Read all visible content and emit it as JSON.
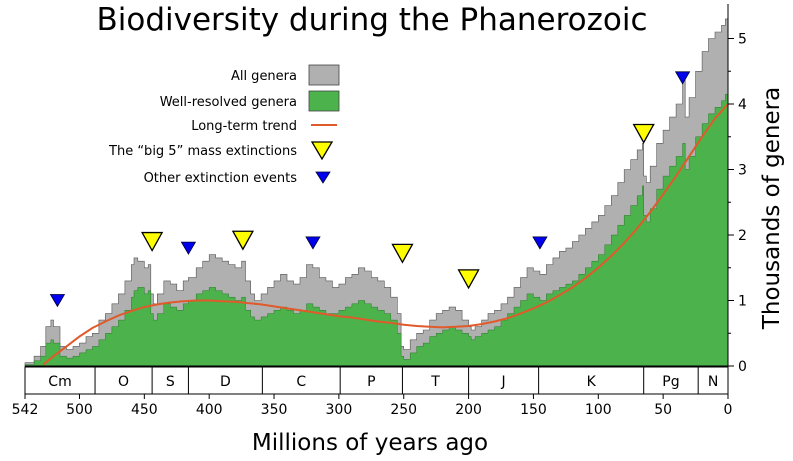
{
  "chart_data": {
    "type": "area",
    "title": "Biodiversity during the Phanerozoic",
    "xlabel": "Millions of years ago",
    "ylabel": "Thousands of genera",
    "xlim": [
      542,
      0
    ],
    "ylim": [
      0,
      5.5
    ],
    "x_ticks": [
      542,
      500,
      450,
      400,
      350,
      300,
      250,
      200,
      150,
      100,
      50,
      0
    ],
    "y_ticks": [
      0,
      1,
      2,
      3,
      4,
      5
    ],
    "legend_position": "top-left",
    "colors": {
      "all_genera": "#b0b0b0",
      "well_resolved": "#4cb24c",
      "trend": "#e05a2b",
      "big5": "#ffff00",
      "other_events": "#0000ee"
    },
    "legend": [
      {
        "label": "All genera",
        "key": "all_genera"
      },
      {
        "label": "Well-resolved genera",
        "key": "well_resolved"
      },
      {
        "label": "Long-term trend",
        "key": "trend"
      },
      {
        "label": "The “big 5” mass extinctions",
        "key": "big5"
      },
      {
        "label": "Other extinction events",
        "key": "other_events"
      }
    ],
    "periods": [
      {
        "label": "Cm",
        "start": 542,
        "end": 488
      },
      {
        "label": "O",
        "start": 488,
        "end": 444
      },
      {
        "label": "S",
        "start": 444,
        "end": 416
      },
      {
        "label": "D",
        "start": 416,
        "end": 359
      },
      {
        "label": "C",
        "start": 359,
        "end": 299
      },
      {
        "label": "P",
        "start": 299,
        "end": 251
      },
      {
        "label": "T",
        "start": 251,
        "end": 200
      },
      {
        "label": "J",
        "start": 200,
        "end": 146
      },
      {
        "label": "K",
        "start": 146,
        "end": 65
      },
      {
        "label": "Pg",
        "start": 65,
        "end": 23
      },
      {
        "label": "N",
        "start": 23,
        "end": 0
      }
    ],
    "series": [
      {
        "name": "All genera",
        "x": [
          542,
          535,
          530,
          526,
          522,
          520,
          515,
          510,
          505,
          500,
          495,
          490,
          485,
          480,
          475,
          470,
          465,
          460,
          458,
          455,
          450,
          447,
          445,
          443,
          440,
          435,
          430,
          425,
          420,
          416,
          410,
          405,
          400,
          395,
          390,
          385,
          380,
          375,
          372,
          368,
          365,
          360,
          355,
          350,
          345,
          340,
          335,
          330,
          325,
          320,
          315,
          310,
          305,
          300,
          295,
          290,
          285,
          280,
          275,
          270,
          265,
          260,
          255,
          252,
          250,
          245,
          240,
          235,
          230,
          225,
          220,
          215,
          210,
          205,
          200,
          198,
          195,
          190,
          185,
          180,
          175,
          170,
          165,
          160,
          155,
          150,
          145,
          140,
          135,
          130,
          125,
          120,
          115,
          110,
          105,
          100,
          95,
          90,
          85,
          80,
          75,
          70,
          66,
          65,
          63,
          60,
          55,
          50,
          45,
          40,
          35,
          33,
          30,
          25,
          20,
          15,
          10,
          5,
          2,
          0
        ],
        "values": [
          0.05,
          0.15,
          0.3,
          0.6,
          0.7,
          0.6,
          0.3,
          0.25,
          0.3,
          0.35,
          0.45,
          0.5,
          0.7,
          0.8,
          0.95,
          1.1,
          1.3,
          1.55,
          1.65,
          1.6,
          1.5,
          1.55,
          1.1,
          0.95,
          1.1,
          1.3,
          1.25,
          1.15,
          1.3,
          1.35,
          1.5,
          1.6,
          1.7,
          1.65,
          1.6,
          1.55,
          1.5,
          1.6,
          1.3,
          1.1,
          1.0,
          1.1,
          1.2,
          1.3,
          1.4,
          1.3,
          1.25,
          1.35,
          1.55,
          1.5,
          1.35,
          1.3,
          1.2,
          1.25,
          1.35,
          1.4,
          1.5,
          1.45,
          1.35,
          1.3,
          1.2,
          1.05,
          0.8,
          0.3,
          0.25,
          0.4,
          0.5,
          0.55,
          0.7,
          0.8,
          0.85,
          0.9,
          0.85,
          0.7,
          0.6,
          0.55,
          0.6,
          0.7,
          0.8,
          0.85,
          0.95,
          1.05,
          1.2,
          1.35,
          1.5,
          1.45,
          1.4,
          1.55,
          1.65,
          1.75,
          1.8,
          1.9,
          2.0,
          2.1,
          2.2,
          2.3,
          2.45,
          2.6,
          2.8,
          3.0,
          3.15,
          3.3,
          3.4,
          2.9,
          2.8,
          3.05,
          3.4,
          3.6,
          3.8,
          4.0,
          4.4,
          3.8,
          4.1,
          4.5,
          4.8,
          5.0,
          5.1,
          5.2,
          5.3,
          5.3
        ]
      },
      {
        "name": "Well-resolved genera",
        "x": [
          542,
          535,
          530,
          526,
          522,
          520,
          515,
          510,
          505,
          500,
          495,
          490,
          485,
          480,
          475,
          470,
          465,
          460,
          458,
          455,
          450,
          447,
          445,
          443,
          440,
          435,
          430,
          425,
          420,
          416,
          410,
          405,
          400,
          395,
          390,
          385,
          380,
          375,
          372,
          368,
          365,
          360,
          355,
          350,
          345,
          340,
          335,
          330,
          325,
          320,
          315,
          310,
          305,
          300,
          295,
          290,
          285,
          280,
          275,
          270,
          265,
          260,
          255,
          252,
          250,
          245,
          240,
          235,
          230,
          225,
          220,
          215,
          210,
          205,
          200,
          198,
          195,
          190,
          185,
          180,
          175,
          170,
          165,
          160,
          155,
          150,
          145,
          140,
          135,
          130,
          125,
          120,
          115,
          110,
          105,
          100,
          95,
          90,
          85,
          80,
          75,
          70,
          66,
          65,
          63,
          60,
          55,
          50,
          45,
          40,
          35,
          33,
          30,
          25,
          20,
          15,
          10,
          5,
          2,
          0
        ],
        "values": [
          0.02,
          0.08,
          0.15,
          0.35,
          0.4,
          0.35,
          0.15,
          0.12,
          0.15,
          0.2,
          0.25,
          0.3,
          0.4,
          0.5,
          0.6,
          0.7,
          0.85,
          1.05,
          1.15,
          1.2,
          1.1,
          1.15,
          0.8,
          0.7,
          0.8,
          0.95,
          0.9,
          0.85,
          0.95,
          1.0,
          1.1,
          1.15,
          1.2,
          1.15,
          1.1,
          1.05,
          1.0,
          1.05,
          0.85,
          0.75,
          0.7,
          0.75,
          0.8,
          0.85,
          0.9,
          0.85,
          0.8,
          0.85,
          0.95,
          0.9,
          0.85,
          0.8,
          0.8,
          0.85,
          0.9,
          0.95,
          1.0,
          0.95,
          0.9,
          0.85,
          0.8,
          0.7,
          0.5,
          0.15,
          0.1,
          0.2,
          0.3,
          0.35,
          0.45,
          0.5,
          0.55,
          0.6,
          0.55,
          0.5,
          0.45,
          0.4,
          0.45,
          0.5,
          0.55,
          0.6,
          0.7,
          0.8,
          0.9,
          1.0,
          1.1,
          1.05,
          1.0,
          1.1,
          1.15,
          1.2,
          1.25,
          1.3,
          1.4,
          1.5,
          1.6,
          1.7,
          1.85,
          2.0,
          2.15,
          2.3,
          2.45,
          2.6,
          2.75,
          2.3,
          2.2,
          2.4,
          2.7,
          2.9,
          3.05,
          3.2,
          3.4,
          3.0,
          3.2,
          3.5,
          3.7,
          3.85,
          3.95,
          4.05,
          4.15,
          4.2
        ]
      },
      {
        "name": "Long-term trend",
        "x": [
          528,
          520,
          510,
          500,
          490,
          480,
          470,
          460,
          450,
          440,
          430,
          420,
          410,
          400,
          390,
          380,
          370,
          360,
          350,
          340,
          330,
          320,
          310,
          300,
          290,
          280,
          270,
          260,
          250,
          240,
          230,
          220,
          210,
          200,
          190,
          180,
          170,
          160,
          150,
          140,
          130,
          120,
          110,
          100,
          90,
          80,
          70,
          60,
          50,
          40,
          30,
          20,
          10,
          0
        ],
        "values": [
          0.02,
          0.15,
          0.3,
          0.45,
          0.58,
          0.68,
          0.77,
          0.84,
          0.9,
          0.94,
          0.97,
          0.99,
          1.0,
          1.0,
          0.99,
          0.98,
          0.96,
          0.94,
          0.91,
          0.88,
          0.85,
          0.82,
          0.79,
          0.76,
          0.74,
          0.71,
          0.68,
          0.66,
          0.63,
          0.61,
          0.6,
          0.59,
          0.6,
          0.61,
          0.64,
          0.68,
          0.73,
          0.8,
          0.88,
          0.97,
          1.08,
          1.2,
          1.34,
          1.5,
          1.68,
          1.88,
          2.1,
          2.35,
          2.62,
          2.9,
          3.2,
          3.5,
          3.78,
          4.0
        ]
      }
    ],
    "big5_extinctions": [
      {
        "x": 444,
        "y": 1.9
      },
      {
        "x": 374,
        "y": 1.92
      },
      {
        "x": 251,
        "y": 1.72
      },
      {
        "x": 200,
        "y": 1.33
      },
      {
        "x": 65,
        "y": 3.55
      }
    ],
    "other_extinctions": [
      {
        "x": 517,
        "y": 1.0
      },
      {
        "x": 416,
        "y": 1.8
      },
      {
        "x": 320,
        "y": 1.88
      },
      {
        "x": 145,
        "y": 1.88
      },
      {
        "x": 35,
        "y": 4.4
      }
    ]
  }
}
